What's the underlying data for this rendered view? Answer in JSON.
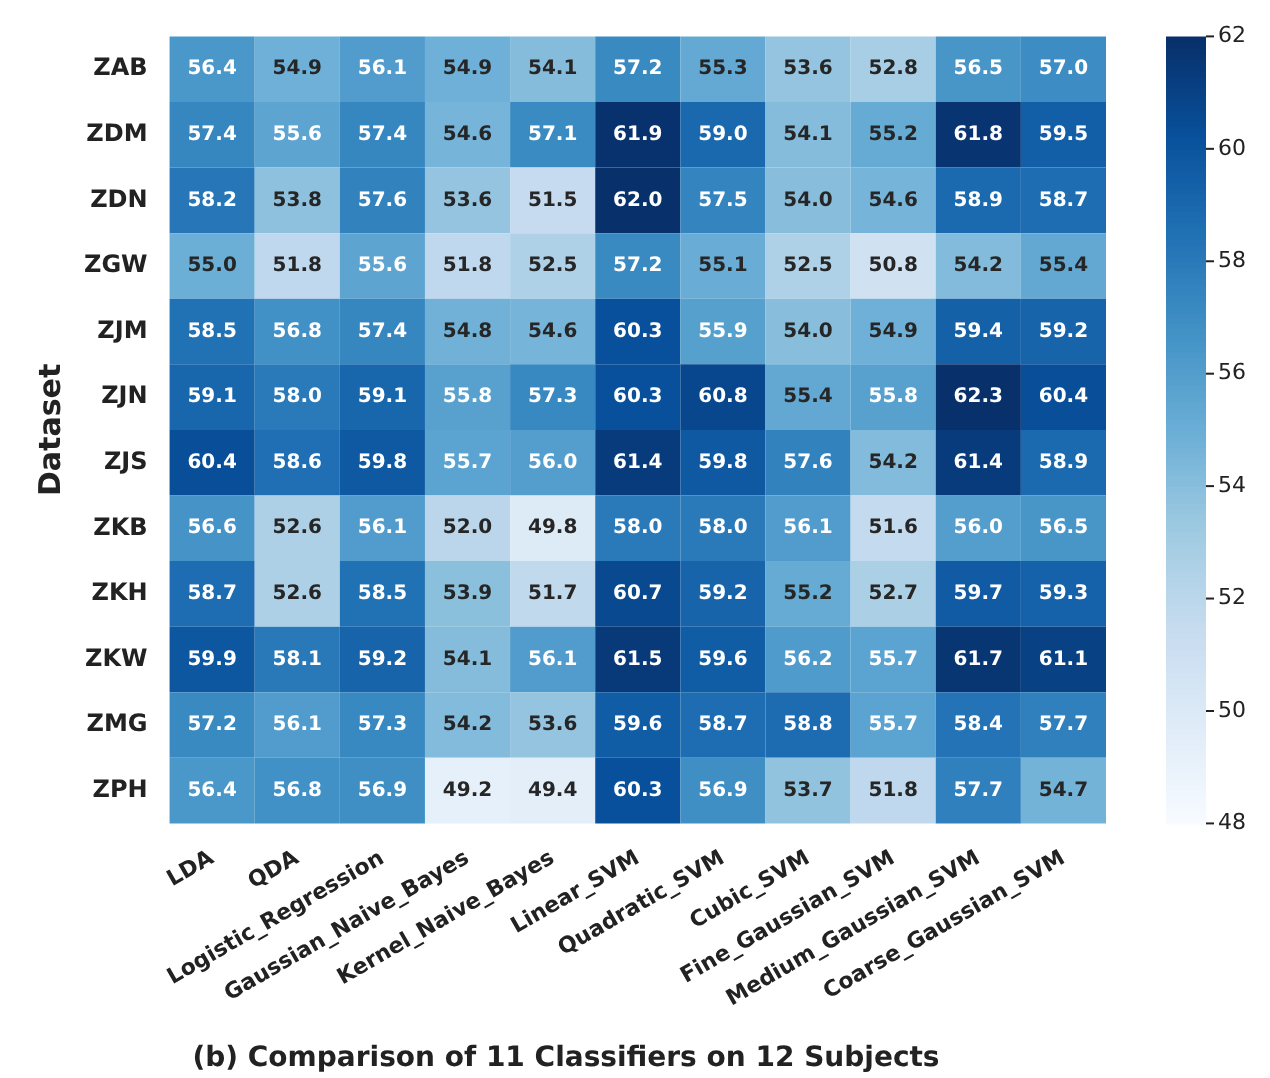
{
  "chart_data": {
    "type": "heatmap",
    "title": "(b) Comparison of 11 Classifiers on 12 Subjects",
    "ylabel": "Dataset",
    "categories": [
      "LDA",
      "QDA",
      "Logistic_Regression",
      "Gaussian_Naive_Bayes",
      "Kernel_Naive_Bayes",
      "Linear_SVM",
      "Quadratic_SVM",
      "Cubic_SVM",
      "Fine_Gaussian_SVM",
      "Medium_Gaussian_SVM",
      "Coarse_Gaussian_SVM"
    ],
    "y_categories": [
      "ZAB",
      "ZDM",
      "ZDN",
      "ZGW",
      "ZJM",
      "ZJN",
      "ZJS",
      "ZKB",
      "ZKH",
      "ZKW",
      "ZMG",
      "ZPH"
    ],
    "cells": [
      [
        56.4,
        54.9,
        56.1,
        54.9,
        54.1,
        57.2,
        55.3,
        53.6,
        52.8,
        56.5,
        57.0
      ],
      [
        57.4,
        55.6,
        57.4,
        54.6,
        57.1,
        61.9,
        59.0,
        54.1,
        55.2,
        61.8,
        59.5
      ],
      [
        58.2,
        53.8,
        57.6,
        53.6,
        51.5,
        62.0,
        57.5,
        54.0,
        54.6,
        58.9,
        58.7
      ],
      [
        55.0,
        51.8,
        55.6,
        51.8,
        52.5,
        57.2,
        55.1,
        52.5,
        50.8,
        54.2,
        55.4
      ],
      [
        58.5,
        56.8,
        57.4,
        54.8,
        54.6,
        60.3,
        55.9,
        54.0,
        54.9,
        59.4,
        59.2
      ],
      [
        59.1,
        58.0,
        59.1,
        55.8,
        57.3,
        60.3,
        60.8,
        55.4,
        55.8,
        62.3,
        60.4
      ],
      [
        60.4,
        58.6,
        59.8,
        55.7,
        56.0,
        61.4,
        59.8,
        57.6,
        54.2,
        61.4,
        58.9
      ],
      [
        56.6,
        52.6,
        56.1,
        52.0,
        49.8,
        58.0,
        58.0,
        56.1,
        51.6,
        56.0,
        56.5
      ],
      [
        58.7,
        52.6,
        58.5,
        53.9,
        51.7,
        60.7,
        59.2,
        55.2,
        52.7,
        59.7,
        59.3
      ],
      [
        59.9,
        58.1,
        59.2,
        54.1,
        56.1,
        61.5,
        59.6,
        56.2,
        55.7,
        61.7,
        61.1
      ],
      [
        57.2,
        56.1,
        57.3,
        54.2,
        53.6,
        59.6,
        58.7,
        58.8,
        55.7,
        58.4,
        57.7
      ],
      [
        56.4,
        56.8,
        56.9,
        49.2,
        49.4,
        60.3,
        56.9,
        53.7,
        51.8,
        57.7,
        54.7
      ]
    ],
    "cell_labels": [
      [
        "56.4",
        "54.9",
        "56.1",
        "54.9",
        "54.1",
        "57.2",
        "55.3",
        "53.6",
        "52.8",
        "56.5",
        "57.0"
      ],
      [
        "57.4",
        "55.6",
        "57.4",
        "54.6",
        "57.1",
        "61.9",
        "59.0",
        "54.1",
        "55.2",
        "61.8",
        "59.5"
      ],
      [
        "58.2",
        "53.8",
        "57.6",
        "53.6",
        "51.5",
        "62.0",
        "57.5",
        "54.0",
        "54.6",
        "58.9",
        "58.7"
      ],
      [
        "55.0",
        "51.8",
        "55.6",
        "51.8",
        "52.5",
        "57.2",
        "55.1",
        "52.5",
        "50.8",
        "54.2",
        "55.4"
      ],
      [
        "58.5",
        "56.8",
        "57.4",
        "54.8",
        "54.6",
        "60.3",
        "55.9",
        "54.0",
        "54.9",
        "59.4",
        "59.2"
      ],
      [
        "59.1",
        "58.0",
        "59.1",
        "55.8",
        "57.3",
        "60.3",
        "60.8",
        "55.4",
        "55.8",
        "62.3",
        "60.4"
      ],
      [
        "60.4",
        "58.6",
        "59.8",
        "55.7",
        "56.0",
        "61.4",
        "59.8",
        "57.6",
        "54.2",
        "61.4",
        "58.9"
      ],
      [
        "56.6",
        "52.6",
        "56.1",
        "52.0",
        "49.8",
        "58.0",
        "58.0",
        "56.1",
        "51.6",
        "56.0",
        "56.5"
      ],
      [
        "58.7",
        "52.6",
        "58.5",
        "53.9",
        "51.7",
        "60.7",
        "59.2",
        "55.2",
        "52.7",
        "59.7",
        "59.3"
      ],
      [
        "59.9",
        "58.1",
        "59.2",
        "54.1",
        "56.1",
        "61.5",
        "59.6",
        "56.2",
        "55.7",
        "61.7",
        "61.1"
      ],
      [
        "57.2",
        "56.1",
        "57.3",
        "54.2",
        "53.6",
        "59.6",
        "58.7",
        "58.8",
        "55.7",
        "58.4",
        "57.7"
      ],
      [
        "56.4",
        "56.8",
        "56.9",
        "49.2",
        "49.4",
        "60.3",
        "56.9",
        "53.7",
        "51.8",
        "57.7",
        "54.7"
      ]
    ],
    "data_labels": true,
    "clim": [
      48,
      62
    ],
    "cticks": [
      48,
      50,
      52,
      54,
      56,
      58,
      60,
      62
    ]
  }
}
